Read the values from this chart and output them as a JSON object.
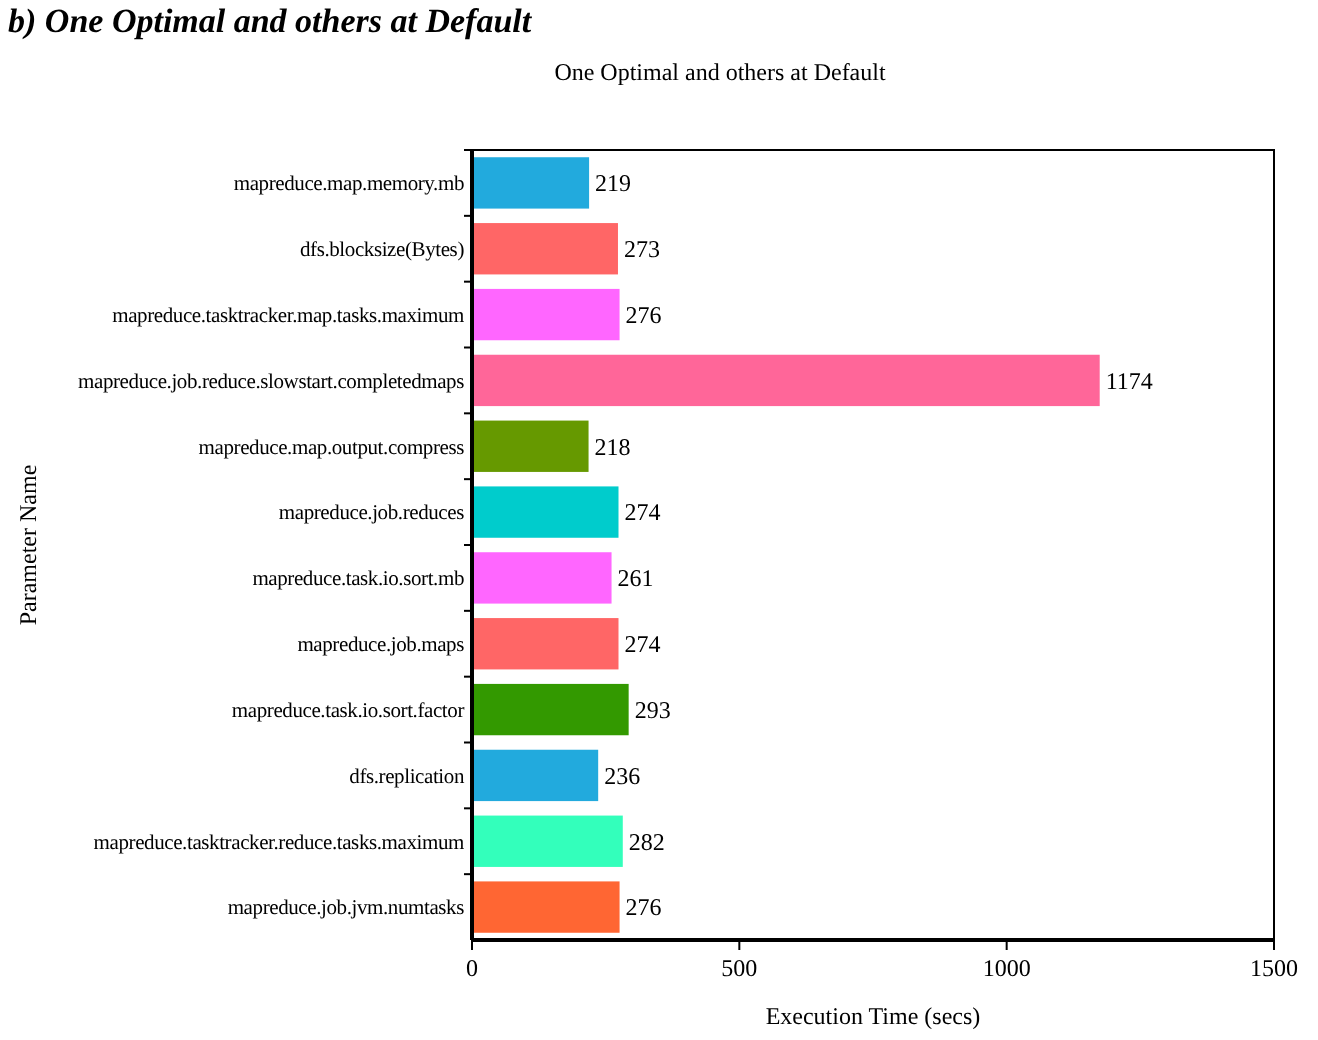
{
  "chart_data": {
    "type": "bar",
    "orientation": "horizontal",
    "title": "One Optimal and others at Default",
    "annotations": [
      "b) One Optimal and others at Default"
    ],
    "xlabel": "Execution Time (secs)",
    "ylabel": "Parameter Name",
    "categories": [
      "mapreduce.map.memory.mb",
      "dfs.blocksize(Bytes)",
      "mapreduce.tasktracker.map.tasks.maximum",
      "mapreduce.job.reduce.slowstart.completedmaps",
      "mapreduce.map.output.compress",
      "mapreduce.job.reduces",
      "mapreduce.task.io.sort.mb",
      "mapreduce.job.maps",
      "mapreduce.task.io.sort.factor",
      "dfs.replication",
      "mapreduce.tasktracker.reduce.tasks.maximum",
      "mapreduce.job.jvm.numtasks"
    ],
    "values": [
      219,
      273,
      276,
      1174,
      218,
      274,
      261,
      274,
      293,
      236,
      282,
      276
    ],
    "colors": [
      "#22aadd",
      "#ff6666",
      "#ff66ff",
      "#ff6699",
      "#669900",
      "#00cccc",
      "#ff66ff",
      "#ff6666",
      "#339900",
      "#22aadd",
      "#33ffbb",
      "#ff6633"
    ],
    "xlim": [
      0,
      1500
    ],
    "xticks": [
      0,
      500,
      1000,
      1500
    ],
    "data_labels": true
  }
}
